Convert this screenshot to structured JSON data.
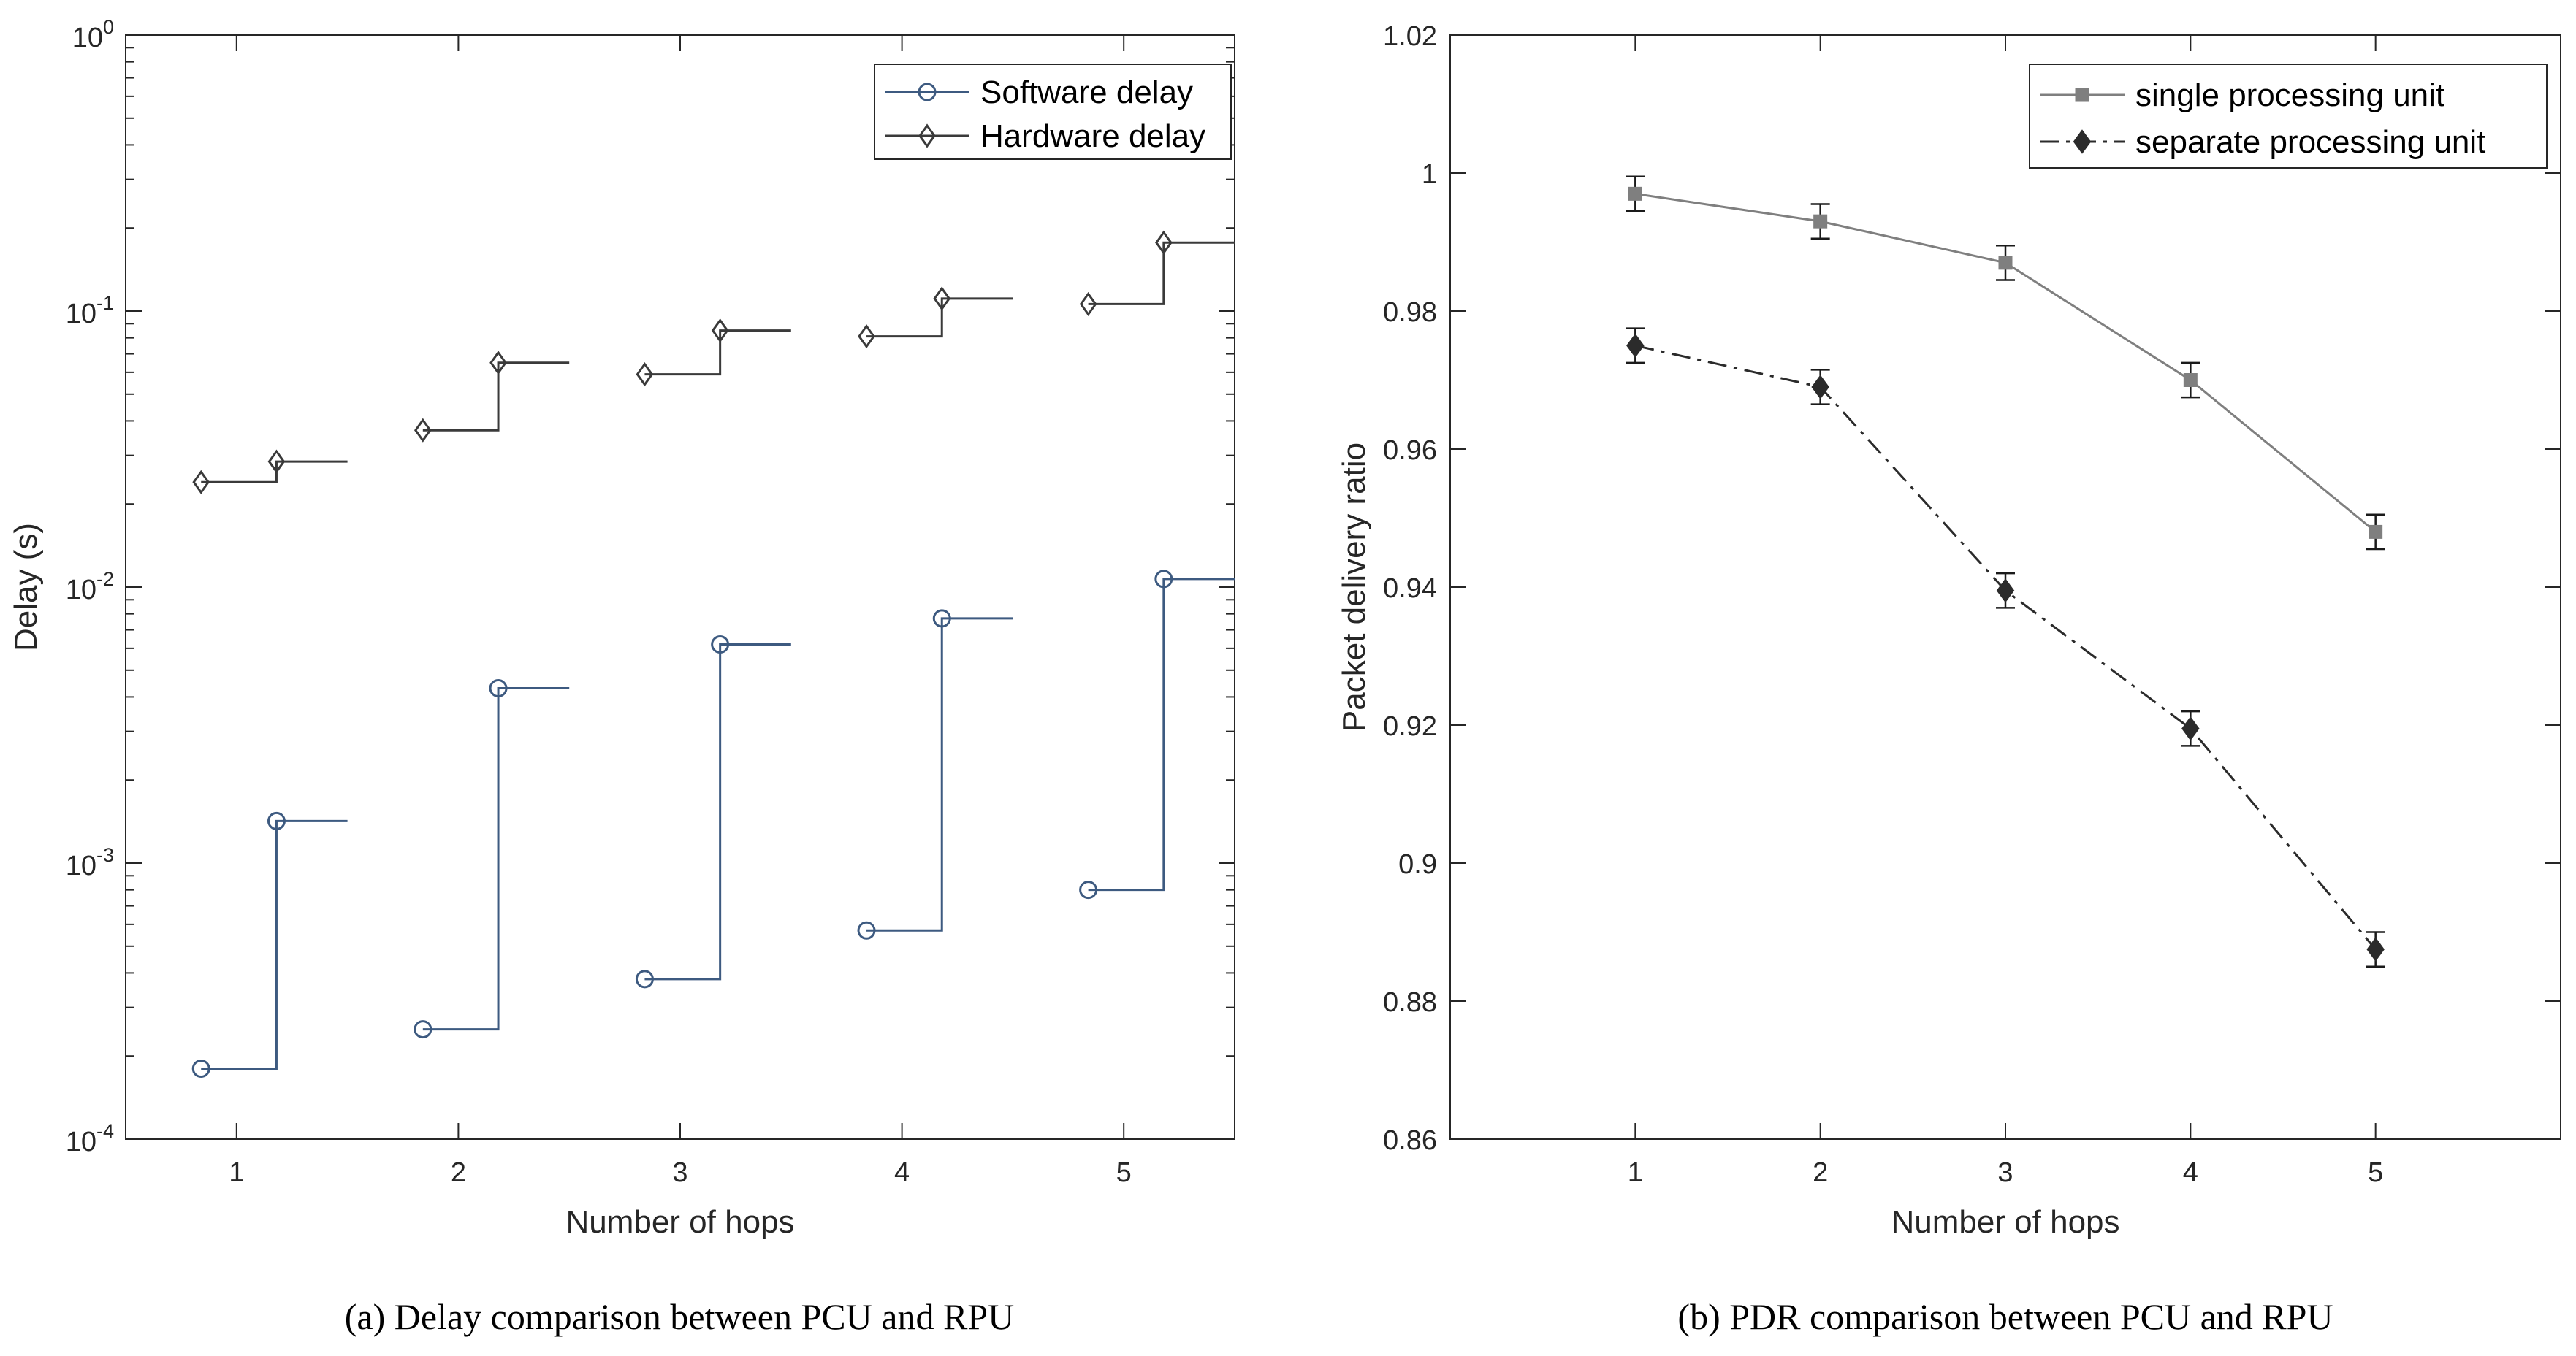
{
  "chart_data": [
    {
      "type": "line",
      "step": true,
      "caption": "(a) Delay comparison between PCU and RPU",
      "xlabel": "Number of hops",
      "ylabel": "Delay (s)",
      "yscale": "log",
      "xlim": [
        0.5,
        5.5
      ],
      "ylim": [
        0.0001,
        1
      ],
      "xticks": [
        1,
        2,
        3,
        4,
        5
      ],
      "xtick_labels": [
        "1",
        "2",
        "3",
        "4",
        "5"
      ],
      "yticks": [
        0.0001,
        0.001,
        0.01,
        0.1,
        1
      ],
      "ytick_labels": [
        {
          "base": "10",
          "exp": "-4"
        },
        {
          "base": "10",
          "exp": "-3"
        },
        {
          "base": "10",
          "exp": "-2"
        },
        {
          "base": "10",
          "exp": "-1"
        },
        {
          "base": "10",
          "exp": "0"
        }
      ],
      "legend_position": "top-right",
      "grid": false,
      "series": [
        {
          "name": "Software delay",
          "color": "#3d5a80",
          "marker": "circle",
          "points": [
            [
              0.84,
              0.00018
            ],
            [
              1.18,
              0.00142
            ],
            [
              1.84,
              0.00025
            ],
            [
              2.18,
              0.0043
            ],
            [
              2.84,
              0.00038
            ],
            [
              3.18,
              0.0062
            ],
            [
              3.84,
              0.00057
            ],
            [
              4.18,
              0.0077
            ],
            [
              4.84,
              0.0008
            ],
            [
              5.18,
              0.0107
            ]
          ]
        },
        {
          "name": "Hardware delay",
          "color": "#3a3a3a",
          "marker": "diamond",
          "points": [
            [
              0.84,
              0.024
            ],
            [
              1.18,
              0.0285
            ],
            [
              1.84,
              0.037
            ],
            [
              2.18,
              0.065
            ],
            [
              2.84,
              0.059
            ],
            [
              3.18,
              0.085
            ],
            [
              3.84,
              0.081
            ],
            [
              4.18,
              0.111
            ],
            [
              4.84,
              0.106
            ],
            [
              5.18,
              0.177
            ]
          ]
        }
      ]
    },
    {
      "type": "line",
      "caption": "(b) PDR comparison between PCU and RPU",
      "xlabel": "Number of hops",
      "ylabel": "Packet delivery ratio",
      "xlim": [
        0,
        6
      ],
      "ylim": [
        0.86,
        1.02
      ],
      "xticks": [
        1,
        2,
        3,
        4,
        5
      ],
      "xtick_labels": [
        "1",
        "2",
        "3",
        "4",
        "5"
      ],
      "yticks": [
        0.86,
        0.88,
        0.9,
        0.92,
        0.94,
        0.96,
        0.98,
        1,
        1.02
      ],
      "ytick_labels": [
        "0.86",
        "0.88",
        "0.9",
        "0.92",
        "0.94",
        "0.96",
        "0.98",
        "1",
        "1.02"
      ],
      "legend_position": "top-right",
      "grid": false,
      "series": [
        {
          "name": "single processing unit",
          "color": "#7f7f7f",
          "line_style": "solid",
          "marker": "square",
          "x": [
            1,
            2,
            3,
            4,
            5
          ],
          "y": [
            0.997,
            0.993,
            0.987,
            0.97,
            0.948
          ],
          "error": [
            0.0025,
            0.0025,
            0.0025,
            0.0025,
            0.0025
          ]
        },
        {
          "name": "separate processing unit",
          "color": "#2b2b2b",
          "line_style": "dash-dot",
          "marker": "diamond",
          "x": [
            1,
            2,
            3,
            4,
            5
          ],
          "y": [
            0.975,
            0.969,
            0.9395,
            0.9195,
            0.8875
          ],
          "error": [
            0.0025,
            0.0025,
            0.0025,
            0.0025,
            0.0025
          ]
        }
      ]
    }
  ]
}
